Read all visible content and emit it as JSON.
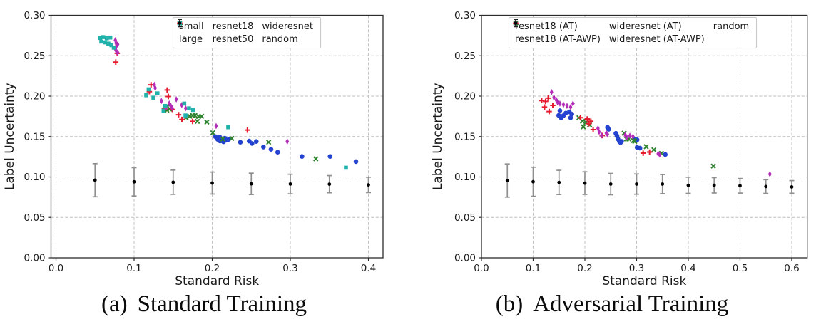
{
  "figure": {
    "background": "#ffffff",
    "grid_color": "#bdbdbd",
    "spine_color": "#2b2b2b",
    "errorbar_color": "#8f8f8f"
  },
  "chart_data": [
    {
      "id": "standard-training",
      "type": "scatter",
      "caption_label": "(a)",
      "caption_title": "Standard Training",
      "xlabel": "Standard Risk",
      "ylabel": "Label Uncertainty",
      "xlim": [
        -0.0064,
        0.4187
      ],
      "ylim": [
        0,
        0.3
      ],
      "xticks": [
        0.0,
        0.1,
        0.2,
        0.3,
        0.4
      ],
      "xtick_labels": [
        "0.0",
        "0.1",
        "0.2",
        "0.3",
        "0.4"
      ],
      "yticks": [
        0.0,
        0.05,
        0.1,
        0.15,
        0.2,
        0.25,
        0.3
      ],
      "ytick_labels": [
        "0.00",
        "0.05",
        "0.10",
        "0.15",
        "0.20",
        "0.25",
        "0.30"
      ],
      "grid": true,
      "legend_columns": [
        [
          "small",
          "large"
        ],
        [
          "resnet18",
          "resnet50"
        ],
        [
          "wideresnet",
          "random"
        ]
      ],
      "series": [
        {
          "name": "small",
          "marker": "circle",
          "color": "#2343cf",
          "points": [
            [
              0.204,
              0.15
            ],
            [
              0.207,
              0.1465
            ],
            [
              0.2095,
              0.1495
            ],
            [
              0.21,
              0.1445
            ],
            [
              0.2125,
              0.146
            ],
            [
              0.2145,
              0.1435
            ],
            [
              0.216,
              0.148
            ],
            [
              0.218,
              0.1455
            ],
            [
              0.221,
              0.1465
            ],
            [
              0.236,
              0.143
            ],
            [
              0.2473,
              0.1444
            ],
            [
              0.251,
              0.1415
            ],
            [
              0.2564,
              0.1439
            ],
            [
              0.2656,
              0.1371
            ],
            [
              0.2753,
              0.1342
            ],
            [
              0.2838,
              0.1307
            ],
            [
              0.3149,
              0.1254
            ],
            [
              0.3509,
              0.1254
            ],
            [
              0.384,
              0.119
            ]
          ]
        },
        {
          "name": "large",
          "marker": "x",
          "color": "#2d832d",
          "points": [
            [
              0.1384,
              0.1829
            ],
            [
              0.1399,
              0.1858
            ],
            [
              0.142,
              0.1826
            ],
            [
              0.1429,
              0.187
            ],
            [
              0.1455,
              0.184
            ],
            [
              0.1665,
              0.1733
            ],
            [
              0.1712,
              0.1752
            ],
            [
              0.1749,
              0.1761
            ],
            [
              0.1779,
              0.1761
            ],
            [
              0.1825,
              0.1747
            ],
            [
              0.1865,
              0.1752
            ],
            [
              0.181,
              0.1688
            ],
            [
              0.1931,
              0.1679
            ],
            [
              0.2007,
              0.1547
            ],
            [
              0.2135,
              0.147
            ],
            [
              0.2251,
              0.1477
            ],
            [
              0.2723,
              0.143
            ],
            [
              0.3326,
              0.1224
            ]
          ]
        },
        {
          "name": "resnet18",
          "marker": "plus",
          "color": "#e6192e",
          "points": [
            [
              0.0784,
              0.253
            ],
            [
              0.0765,
              0.2421
            ],
            [
              0.1195,
              0.2055
            ],
            [
              0.1217,
              0.214
            ],
            [
              0.1423,
              0.2076
            ],
            [
              0.1438,
              0.1996
            ],
            [
              0.139,
              0.184
            ],
            [
              0.149,
              0.1835
            ],
            [
              0.157,
              0.177
            ],
            [
              0.1612,
              0.1712
            ],
            [
              0.1749,
              0.1688
            ],
            [
              0.245,
              0.158
            ]
          ]
        },
        {
          "name": "resnet50",
          "marker": "thin-diamond",
          "color": "#b32db8",
          "points": [
            [
              0.076,
              0.2692
            ],
            [
              0.0769,
              0.2656
            ],
            [
              0.079,
              0.2641
            ],
            [
              0.0775,
              0.2621
            ],
            [
              0.076,
              0.2583
            ],
            [
              0.0775,
              0.2553
            ],
            [
              0.079,
              0.2539
            ],
            [
              0.126,
              0.214
            ],
            [
              0.127,
              0.21
            ],
            [
              0.135,
              0.194
            ],
            [
              0.141,
              0.186
            ],
            [
              0.145,
              0.191
            ],
            [
              0.147,
              0.188
            ],
            [
              0.149,
              0.185
            ],
            [
              0.154,
              0.196
            ],
            [
              0.161,
              0.189
            ],
            [
              0.166,
              0.185
            ],
            [
              0.205,
              0.163
            ],
            [
              0.2961,
              0.1439
            ]
          ]
        },
        {
          "name": "wideresnet",
          "marker": "square",
          "color": "#22b2ac",
          "points": [
            [
              0.0565,
              0.272
            ],
            [
              0.0605,
              0.273
            ],
            [
              0.065,
              0.2715
            ],
            [
              0.0695,
              0.2725
            ],
            [
              0.058,
              0.2675
            ],
            [
              0.0625,
              0.2665
            ],
            [
              0.067,
              0.265
            ],
            [
              0.071,
              0.263
            ],
            [
              0.074,
              0.26
            ],
            [
              0.1155,
              0.2011
            ],
            [
              0.1186,
              0.2084
            ],
            [
              0.1247,
              0.1981
            ],
            [
              0.1299,
              0.2034
            ],
            [
              0.1377,
              0.182
            ],
            [
              0.1399,
              0.1879
            ],
            [
              0.1642,
              0.1908
            ],
            [
              0.1703,
              0.1849
            ],
            [
              0.1755,
              0.1829
            ],
            [
              0.1658,
              0.1761
            ],
            [
              0.2205,
              0.1615
            ],
            [
              0.3712,
              0.1115
            ]
          ]
        },
        {
          "name": "random",
          "marker": "errorbar",
          "color": "#000000",
          "x": [
            0.05,
            0.1,
            0.15,
            0.2,
            0.25,
            0.3,
            0.35,
            0.4
          ],
          "y": [
            0.096,
            0.094,
            0.0935,
            0.0925,
            0.0915,
            0.0913,
            0.0911,
            0.0902
          ],
          "yerr": [
            0.0205,
            0.0175,
            0.015,
            0.0136,
            0.0132,
            0.0121,
            0.0106,
            0.0095
          ]
        }
      ]
    },
    {
      "id": "adversarial-training",
      "type": "scatter",
      "caption_label": "(b)",
      "caption_title": "Adversarial Training",
      "xlabel": "Standard Risk",
      "ylabel": "Label Uncertainty",
      "xlim": [
        0,
        0.63
      ],
      "ylim": [
        0,
        0.3
      ],
      "xticks": [
        0.0,
        0.1,
        0.2,
        0.3,
        0.4,
        0.5,
        0.6
      ],
      "xtick_labels": [
        "0.0",
        "0.1",
        "0.2",
        "0.3",
        "0.4",
        "0.5",
        "0.6"
      ],
      "yticks": [
        0.0,
        0.05,
        0.1,
        0.15,
        0.2,
        0.25,
        0.3
      ],
      "ytick_labels": [
        "0.00",
        "0.05",
        "0.10",
        "0.15",
        "0.20",
        "0.25",
        "0.30"
      ],
      "grid": true,
      "legend_columns": [
        [
          "resnet18 (AT)",
          "resnet18 (AT-AWP)"
        ],
        [
          "wideresnet (AT)",
          "wideresnet (AT-AWP)"
        ],
        [
          "random"
        ]
      ],
      "series": [
        {
          "name": "resnet18 (AT)",
          "marker": "circle",
          "color": "#2343cf",
          "points": [
            [
              0.1494,
              0.1762
            ],
            [
              0.1517,
              0.182
            ],
            [
              0.154,
              0.1733
            ],
            [
              0.1632,
              0.179
            ],
            [
              0.17,
              0.1806
            ],
            [
              0.1724,
              0.1733
            ],
            [
              0.1747,
              0.1777
            ],
            [
              0.1586,
              0.176
            ],
            [
              0.2437,
              0.1615
            ],
            [
              0.246,
              0.159
            ],
            [
              0.26,
              0.154
            ],
            [
              0.262,
              0.151
            ],
            [
              0.264,
              0.147
            ],
            [
              0.2667,
              0.144
            ],
            [
              0.269,
              0.1426
            ],
            [
              0.271,
              0.144
            ],
            [
              0.2966,
              0.147
            ],
            [
              0.301,
              0.146
            ],
            [
              0.301,
              0.1366
            ],
            [
              0.3066,
              0.1357
            ],
            [
              0.3555,
              0.1278
            ]
          ]
        },
        {
          "name": "resnet18 (AT-AWP)",
          "marker": "x",
          "color": "#2d832d",
          "points": [
            [
              0.1885,
              0.1733
            ],
            [
              0.1954,
              0.1689
            ],
            [
              0.197,
              0.162
            ],
            [
              0.2023,
              0.1674
            ],
            [
              0.2092,
              0.1645
            ],
            [
              0.2759,
              0.1542
            ],
            [
              0.2805,
              0.147
            ],
            [
              0.285,
              0.147
            ],
            [
              0.294,
              0.145
            ],
            [
              0.2966,
              0.144
            ],
            [
              0.3186,
              0.1375
            ],
            [
              0.3334,
              0.1337
            ],
            [
              0.348,
              0.1293
            ],
            [
              0.4483,
              0.1135
            ]
          ]
        },
        {
          "name": "wideresnet (AT)",
          "marker": "plus",
          "color": "#e6192e",
          "points": [
            [
              0.1165,
              0.1945
            ],
            [
              0.124,
              0.1935
            ],
            [
              0.129,
              0.1975
            ],
            [
              0.122,
              0.1865
            ],
            [
              0.131,
              0.181
            ],
            [
              0.138,
              0.1885
            ],
            [
              0.1915,
              0.1733
            ],
            [
              0.2046,
              0.1718
            ],
            [
              0.208,
              0.166
            ],
            [
              0.2115,
              0.1689
            ],
            [
              0.216,
              0.1586
            ],
            [
              0.2335,
              0.1513
            ],
            [
              0.3127,
              0.1295
            ],
            [
              0.3251,
              0.1308
            ]
          ]
        },
        {
          "name": "wideresnet (AT-AWP)",
          "marker": "thin-diamond",
          "color": "#b32db8",
          "points": [
            [
              0.1356,
              0.205
            ],
            [
              0.1402,
              0.1982
            ],
            [
              0.1448,
              0.1952
            ],
            [
              0.1472,
              0.1923
            ],
            [
              0.1517,
              0.1908
            ],
            [
              0.1586,
              0.1894
            ],
            [
              0.1655,
              0.1879
            ],
            [
              0.1724,
              0.1864
            ],
            [
              0.177,
              0.1908
            ],
            [
              0.2253,
              0.1601
            ],
            [
              0.2276,
              0.1557
            ],
            [
              0.2322,
              0.1513
            ],
            [
              0.2414,
              0.1542
            ],
            [
              0.2437,
              0.1528
            ],
            [
              0.278,
              0.152
            ],
            [
              0.281,
              0.149
            ],
            [
              0.287,
              0.151
            ],
            [
              0.293,
              0.15
            ],
            [
              0.3417,
              0.1287
            ],
            [
              0.3448,
              0.1278
            ],
            [
              0.5577,
              0.1035
            ]
          ]
        },
        {
          "name": "random",
          "marker": "errorbar",
          "color": "#000000",
          "x": [
            0.05,
            0.1,
            0.15,
            0.2,
            0.25,
            0.3,
            0.35,
            0.4,
            0.45,
            0.5,
            0.55,
            0.6
          ],
          "y": [
            0.0956,
            0.0941,
            0.0933,
            0.0924,
            0.0912,
            0.0912,
            0.0912,
            0.0897,
            0.0897,
            0.0891,
            0.0882,
            0.0877
          ],
          "yerr": [
            0.0205,
            0.018,
            0.015,
            0.014,
            0.0132,
            0.0125,
            0.0118,
            0.01,
            0.0095,
            0.009,
            0.0085,
            0.0078
          ]
        }
      ]
    }
  ]
}
